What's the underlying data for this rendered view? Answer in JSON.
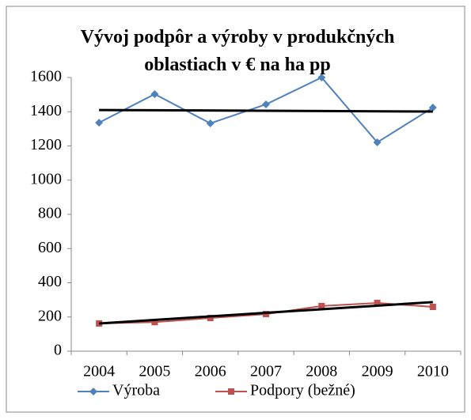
{
  "chart_data": {
    "type": "line",
    "title": "Vývoj podpôr a výroby v produkčných oblastiach v € na ha pp",
    "categories": [
      "2004",
      "2005",
      "2006",
      "2007",
      "2008",
      "2009",
      "2010"
    ],
    "series": [
      {
        "name": "Výroba",
        "color": "#4f81bd",
        "values": [
          1336,
          1503,
          1332,
          1443,
          1600,
          1221,
          1424
        ]
      },
      {
        "name": "Podpory (bežné)",
        "color": "#c0504d",
        "values": [
          162,
          170,
          194,
          217,
          264,
          282,
          259
        ]
      }
    ],
    "trendlines": [
      {
        "color": "#000000",
        "values": [
          1410,
          1401
        ]
      },
      {
        "color": "#000000",
        "values": [
          162,
          287
        ]
      }
    ],
    "ylim": [
      0,
      1600
    ],
    "yticks": [
      0,
      200,
      400,
      600,
      800,
      1000,
      1200,
      1400,
      1600
    ],
    "grid": false,
    "legend": "bottom"
  }
}
